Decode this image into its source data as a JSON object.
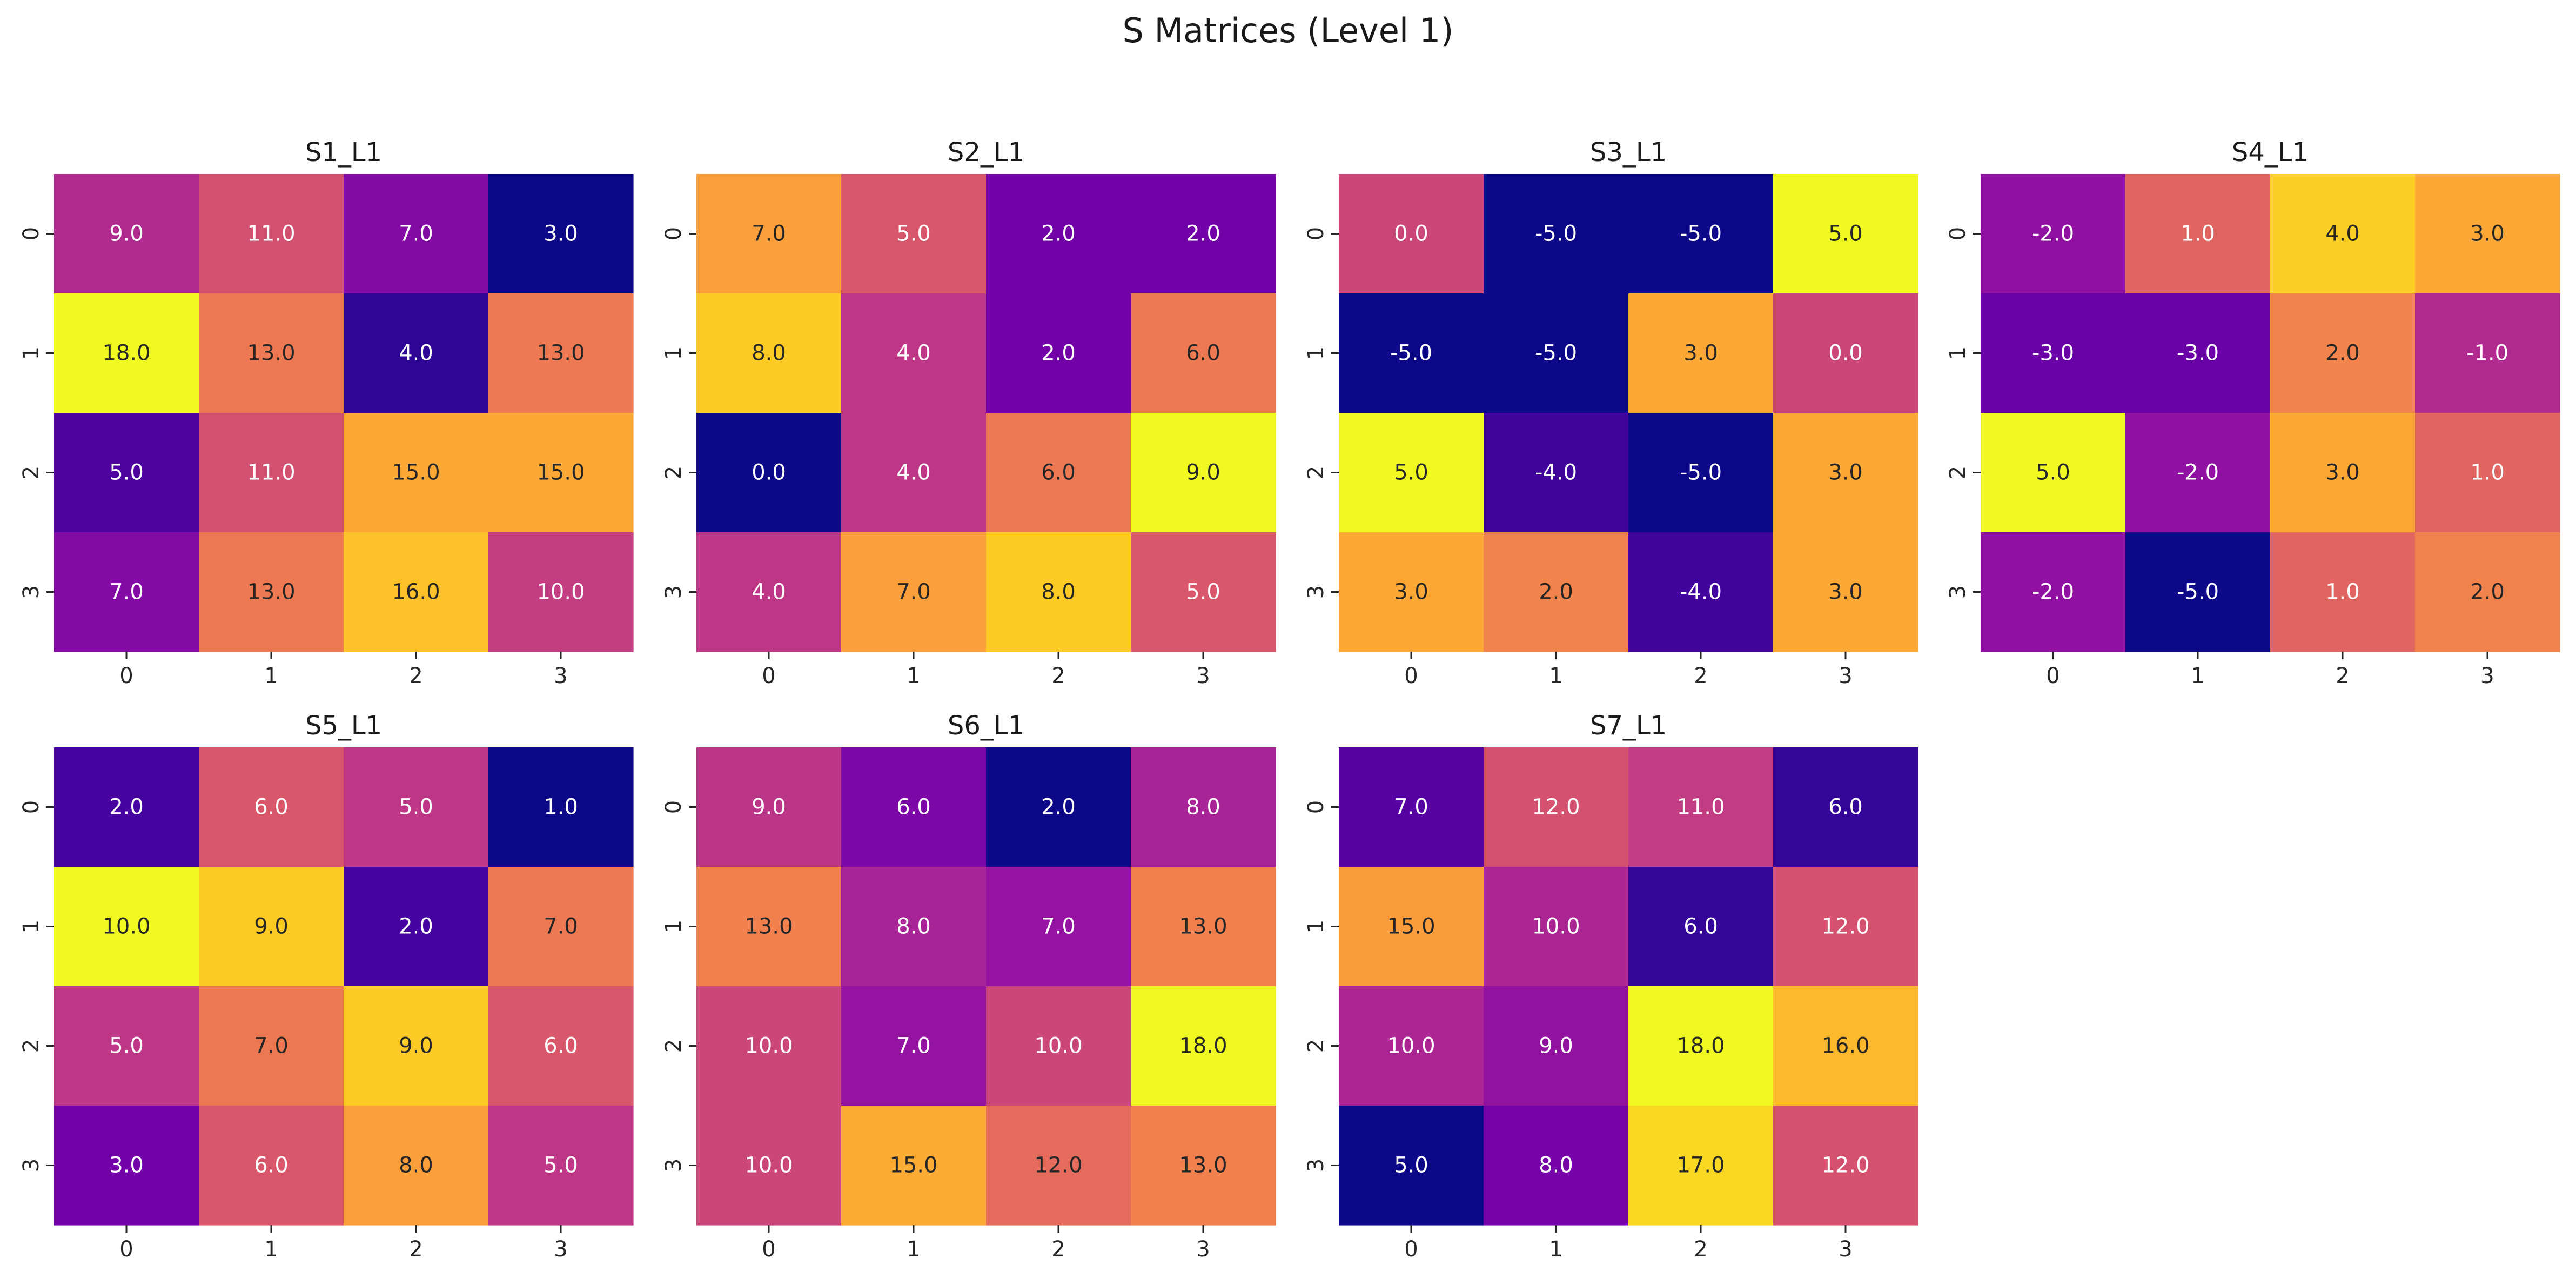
{
  "figure": {
    "title": "S Matrices (Level 1)"
  },
  "colormap": {
    "name": "plasma",
    "stops": [
      "#0d0887",
      "#46039f",
      "#7201a8",
      "#9c179e",
      "#bd3786",
      "#d8576b",
      "#ed7953",
      "#fb9f3a",
      "#fdca26",
      "#f0f921"
    ]
  },
  "chart_data": [
    {
      "type": "heatmap",
      "title": "S1_L1",
      "x": [
        "0",
        "1",
        "2",
        "3"
      ],
      "y": [
        "0",
        "1",
        "2",
        "3"
      ],
      "values": [
        [
          9.0,
          11.0,
          7.0,
          3.0
        ],
        [
          18.0,
          13.0,
          4.0,
          13.0
        ],
        [
          5.0,
          11.0,
          15.0,
          15.0
        ],
        [
          7.0,
          13.0,
          16.0,
          10.0
        ]
      ]
    },
    {
      "type": "heatmap",
      "title": "S2_L1",
      "x": [
        "0",
        "1",
        "2",
        "3"
      ],
      "y": [
        "0",
        "1",
        "2",
        "3"
      ],
      "values": [
        [
          7.0,
          5.0,
          2.0,
          2.0
        ],
        [
          8.0,
          4.0,
          2.0,
          6.0
        ],
        [
          0.0,
          4.0,
          6.0,
          9.0
        ],
        [
          4.0,
          7.0,
          8.0,
          5.0
        ]
      ]
    },
    {
      "type": "heatmap",
      "title": "S3_L1",
      "x": [
        "0",
        "1",
        "2",
        "3"
      ],
      "y": [
        "0",
        "1",
        "2",
        "3"
      ],
      "values": [
        [
          0.0,
          -5.0,
          -5.0,
          5.0
        ],
        [
          -5.0,
          -5.0,
          3.0,
          0.0
        ],
        [
          5.0,
          -4.0,
          -5.0,
          3.0
        ],
        [
          3.0,
          2.0,
          -4.0,
          3.0
        ]
      ]
    },
    {
      "type": "heatmap",
      "title": "S4_L1",
      "x": [
        "0",
        "1",
        "2",
        "3"
      ],
      "y": [
        "0",
        "1",
        "2",
        "3"
      ],
      "values": [
        [
          -2.0,
          1.0,
          4.0,
          3.0
        ],
        [
          -3.0,
          -3.0,
          2.0,
          -1.0
        ],
        [
          5.0,
          -2.0,
          3.0,
          1.0
        ],
        [
          -2.0,
          -5.0,
          1.0,
          2.0
        ]
      ]
    },
    {
      "type": "heatmap",
      "title": "S5_L1",
      "x": [
        "0",
        "1",
        "2",
        "3"
      ],
      "y": [
        "0",
        "1",
        "2",
        "3"
      ],
      "values": [
        [
          2.0,
          6.0,
          5.0,
          1.0
        ],
        [
          10.0,
          9.0,
          2.0,
          7.0
        ],
        [
          5.0,
          7.0,
          9.0,
          6.0
        ],
        [
          3.0,
          6.0,
          8.0,
          5.0
        ]
      ]
    },
    {
      "type": "heatmap",
      "title": "S6_L1",
      "x": [
        "0",
        "1",
        "2",
        "3"
      ],
      "y": [
        "0",
        "1",
        "2",
        "3"
      ],
      "values": [
        [
          9.0,
          6.0,
          2.0,
          8.0
        ],
        [
          13.0,
          8.0,
          7.0,
          13.0
        ],
        [
          10.0,
          7.0,
          10.0,
          18.0
        ],
        [
          10.0,
          15.0,
          12.0,
          13.0
        ]
      ]
    },
    {
      "type": "heatmap",
      "title": "S7_L1",
      "x": [
        "0",
        "1",
        "2",
        "3"
      ],
      "y": [
        "0",
        "1",
        "2",
        "3"
      ],
      "values": [
        [
          7.0,
          12.0,
          11.0,
          6.0
        ],
        [
          15.0,
          10.0,
          6.0,
          12.0
        ],
        [
          10.0,
          9.0,
          18.0,
          16.0
        ],
        [
          5.0,
          8.0,
          17.0,
          12.0
        ]
      ]
    }
  ]
}
